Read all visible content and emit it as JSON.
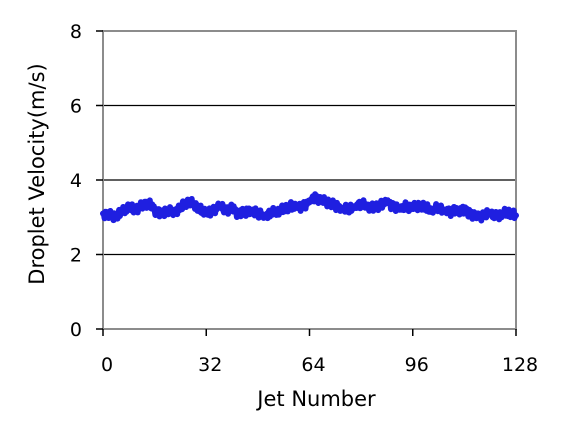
{
  "chart_data": {
    "type": "line",
    "title": "",
    "xlabel": "Jet Number",
    "ylabel": "Droplet Velocity(m/s)",
    "xlim": [
      0,
      128
    ],
    "ylim": [
      0,
      8
    ],
    "xticks": [
      "0",
      "32",
      "64",
      "96",
      "128"
    ],
    "xtick_values": [
      0,
      32,
      64,
      96,
      128
    ],
    "yticks": [
      "0",
      "2",
      "4",
      "6",
      "8"
    ],
    "ytick_values": [
      0,
      2,
      4,
      6,
      8
    ],
    "grid": "horizontal",
    "legend": "none",
    "series_color": "#1f1fe0",
    "series": [
      {
        "x": [
          0,
          2,
          4,
          6,
          8,
          10,
          12,
          14,
          16,
          18,
          20,
          22,
          24,
          26,
          28,
          30,
          32,
          34,
          36,
          38,
          40,
          42,
          44,
          46,
          48,
          50,
          52,
          54,
          56,
          58,
          60,
          62,
          64,
          66,
          68,
          70,
          72,
          74,
          76,
          78,
          80,
          82,
          84,
          86,
          88,
          90,
          92,
          94,
          96,
          98,
          100,
          102,
          104,
          106,
          108,
          110,
          112,
          114,
          116,
          118,
          120,
          122,
          124,
          126,
          128
        ],
        "values": [
          3.1,
          3.05,
          3.0,
          3.15,
          3.25,
          3.2,
          3.3,
          3.4,
          3.2,
          3.1,
          3.2,
          3.15,
          3.25,
          3.4,
          3.35,
          3.2,
          3.1,
          3.15,
          3.3,
          3.2,
          3.25,
          3.1,
          3.15,
          3.2,
          3.1,
          3.05,
          3.1,
          3.15,
          3.2,
          3.3,
          3.25,
          3.3,
          3.4,
          3.55,
          3.45,
          3.4,
          3.3,
          3.25,
          3.2,
          3.3,
          3.35,
          3.3,
          3.25,
          3.35,
          3.4,
          3.3,
          3.2,
          3.3,
          3.25,
          3.3,
          3.25,
          3.2,
          3.25,
          3.2,
          3.15,
          3.2,
          3.2,
          3.1,
          3.0,
          3.05,
          3.1,
          3.0,
          3.1,
          3.1,
          3.05
        ]
      }
    ]
  }
}
